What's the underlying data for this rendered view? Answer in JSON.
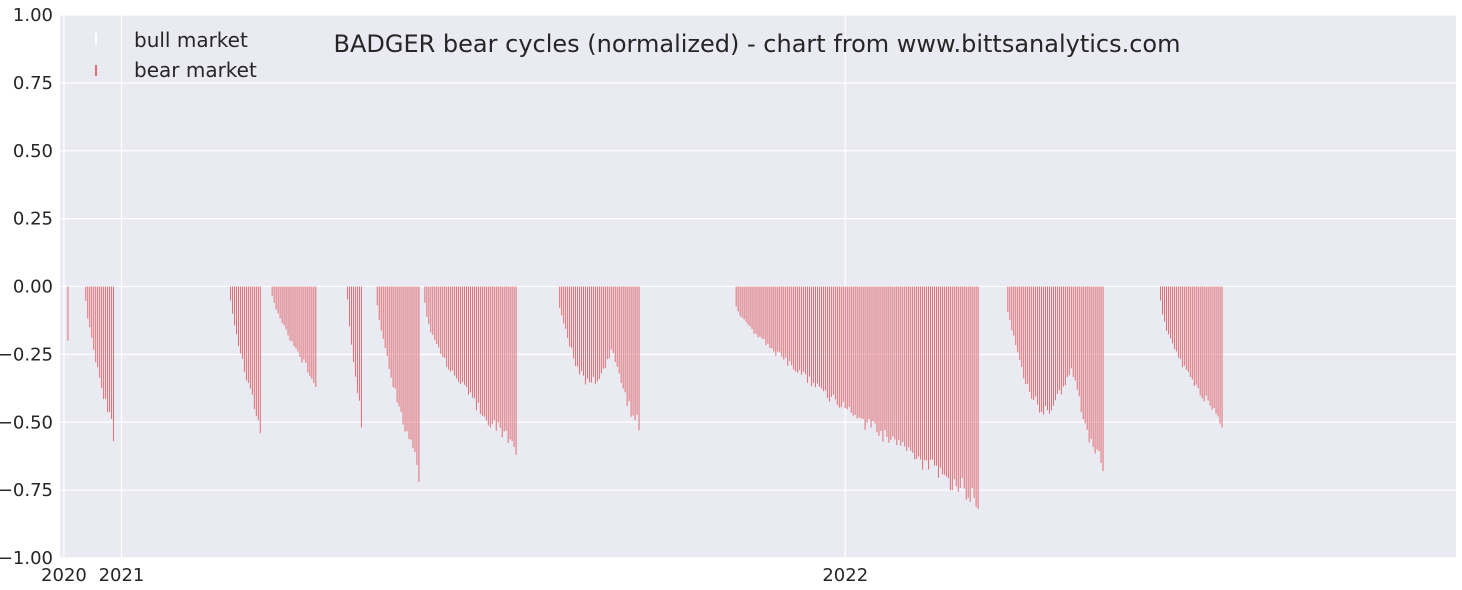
{
  "colors": {
    "plot_background": "#eaeaf2",
    "grid": "#ffffff",
    "bear_bar": "#e06d73",
    "text": "#262626"
  },
  "chart_data": {
    "type": "bar",
    "title": "BADGER bear cycles (normalized)  - chart from www.bittsanalytics.com",
    "xlabel": "",
    "ylabel": "",
    "ylim": [
      -1.0,
      1.0
    ],
    "yticks": [
      "1.00",
      "0.75",
      "0.50",
      "0.25",
      "0.00",
      "−0.25",
      "−0.50",
      "−0.75",
      "−1.00"
    ],
    "ytick_values": [
      1.0,
      0.75,
      0.5,
      0.25,
      0.0,
      -0.25,
      -0.5,
      -0.75,
      -1.0
    ],
    "xlim": [
      "2020-12-01",
      "2022-11-05"
    ],
    "xticks": [
      {
        "label": "2020",
        "date": "2020-12-03"
      },
      {
        "label": "2021",
        "date": "2021-01-01"
      },
      {
        "label": "2022",
        "date": "2022-01-01"
      }
    ],
    "grid": true,
    "legend": {
      "placement": "top-left",
      "entries": [
        {
          "label": "bull market",
          "color": "#ffffff"
        },
        {
          "label": "bear market",
          "color": "#e06d73"
        }
      ]
    },
    "series": [
      {
        "name": "bear market",
        "segments": [
          {
            "start": "2020-12-05",
            "end": "2020-12-05",
            "min": -0.2,
            "shape": "flat"
          },
          {
            "start": "2020-12-14",
            "end": "2020-12-28",
            "min": -0.57,
            "shape": "ramp"
          },
          {
            "start": "2021-02-25",
            "end": "2021-03-12",
            "min": -0.54,
            "shape": "ramp"
          },
          {
            "start": "2021-03-18",
            "end": "2021-04-09",
            "min": -0.37,
            "shape": "ramp"
          },
          {
            "start": "2021-04-25",
            "end": "2021-05-02",
            "min": -0.52,
            "shape": "ramp"
          },
          {
            "start": "2021-05-10",
            "end": "2021-05-31",
            "min": -0.72,
            "shape": "ramp"
          },
          {
            "start": "2021-06-03",
            "end": "2021-07-19",
            "min": -0.62,
            "shape": "dip"
          },
          {
            "start": "2021-08-10",
            "end": "2021-09-19",
            "min": -0.53,
            "shape": "wave"
          },
          {
            "start": "2021-11-07",
            "end": "2022-03-09",
            "min": -0.82,
            "shape": "ramp"
          },
          {
            "start": "2022-03-24",
            "end": "2022-05-11",
            "min": -0.68,
            "shape": "wave"
          },
          {
            "start": "2022-06-09",
            "end": "2022-07-10",
            "min": -0.52,
            "shape": "dip"
          }
        ]
      }
    ]
  }
}
